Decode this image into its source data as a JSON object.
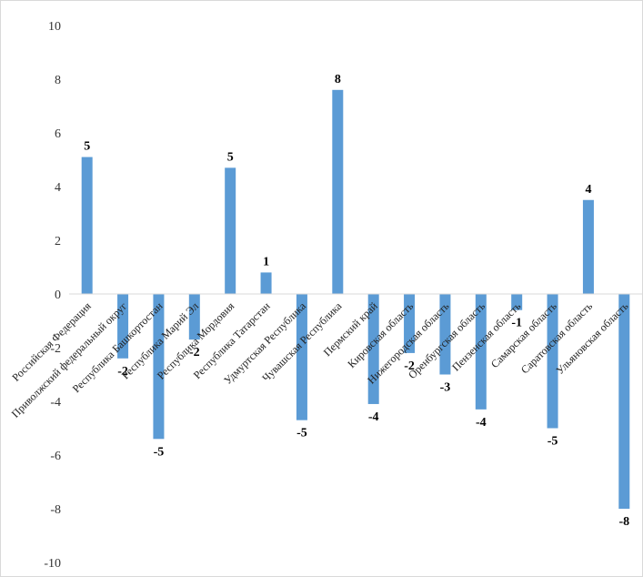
{
  "chart_data": {
    "type": "bar",
    "categories": [
      "Российская Федерация",
      "Приволжский федеральный округ",
      "Республика Башкортостан",
      "Республика Марий Эл",
      "Республика Мордовия",
      "Республика Татарстан",
      "Удмуртская Республика",
      "Чувашская Республика",
      "Пермский край",
      "Кировская область",
      "Нижегородская область",
      "Оренбургская область",
      "Пензенская область",
      "Самарская область",
      "Саратовская область",
      "Ульяновская область"
    ],
    "values": [
      5.1,
      -2.4,
      -5.4,
      -1.7,
      4.7,
      0.8,
      -4.7,
      7.6,
      -4.1,
      -2.2,
      -3.0,
      -4.3,
      -0.6,
      -5.0,
      3.5,
      -8.0
    ],
    "data_labels": [
      "5",
      "-2",
      "-5",
      "-2",
      "5",
      "1",
      "-5",
      "8",
      "-4",
      "-2",
      "-3",
      "-4",
      "-1",
      "-5",
      "4",
      "-8"
    ],
    "yticks": [
      "10",
      "8",
      "6",
      "4",
      "2",
      "0",
      "-2",
      "-4",
      "-6",
      "-8",
      "-10"
    ],
    "ylim": [
      -10,
      10
    ],
    "bar_color": "#5b9bd5",
    "grid": false,
    "legend": "none"
  }
}
